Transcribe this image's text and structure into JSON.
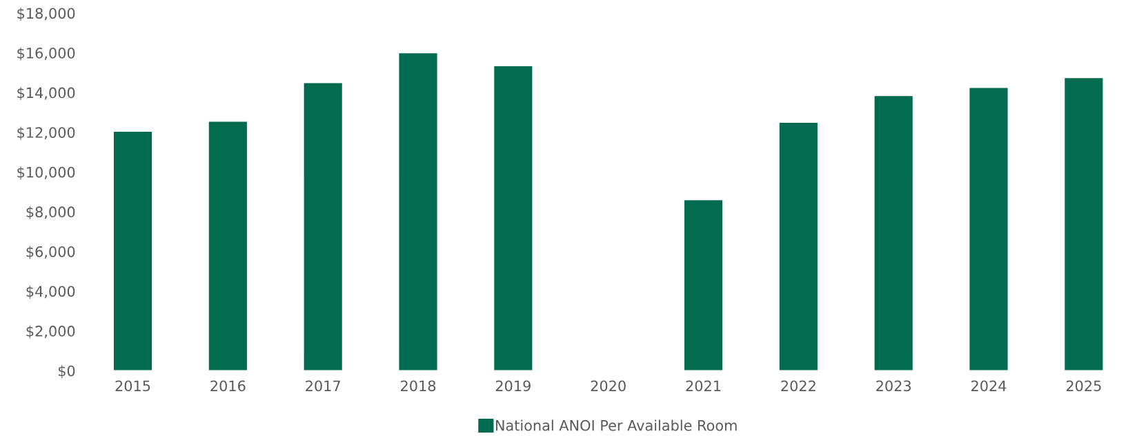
{
  "chart_data": {
    "type": "bar",
    "categories": [
      "2015",
      "2016",
      "2017",
      "2018",
      "2019",
      "2020",
      "2021",
      "2022",
      "2023",
      "2024",
      "2025"
    ],
    "series": [
      {
        "name": "National ANOI Per Available Room",
        "color": "#006b4f",
        "values": [
          12050,
          12550,
          14500,
          16000,
          15350,
          null,
          8600,
          12500,
          13850,
          14250,
          14750
        ]
      }
    ],
    "ylim": [
      0,
      18000
    ],
    "yticks": [
      {
        "value": 0,
        "label": "$0"
      },
      {
        "value": 2000,
        "label": "$2,000"
      },
      {
        "value": 4000,
        "label": "$4,000"
      },
      {
        "value": 6000,
        "label": "$6,000"
      },
      {
        "value": 8000,
        "label": "$8,000"
      },
      {
        "value": 10000,
        "label": "$10,000"
      },
      {
        "value": 12000,
        "label": "$12,000"
      },
      {
        "value": 14000,
        "label": "$14,000"
      },
      {
        "value": 16000,
        "label": "$16,000"
      },
      {
        "value": 18000,
        "label": "$18,000"
      }
    ],
    "grid": false,
    "legend": "bottom"
  }
}
